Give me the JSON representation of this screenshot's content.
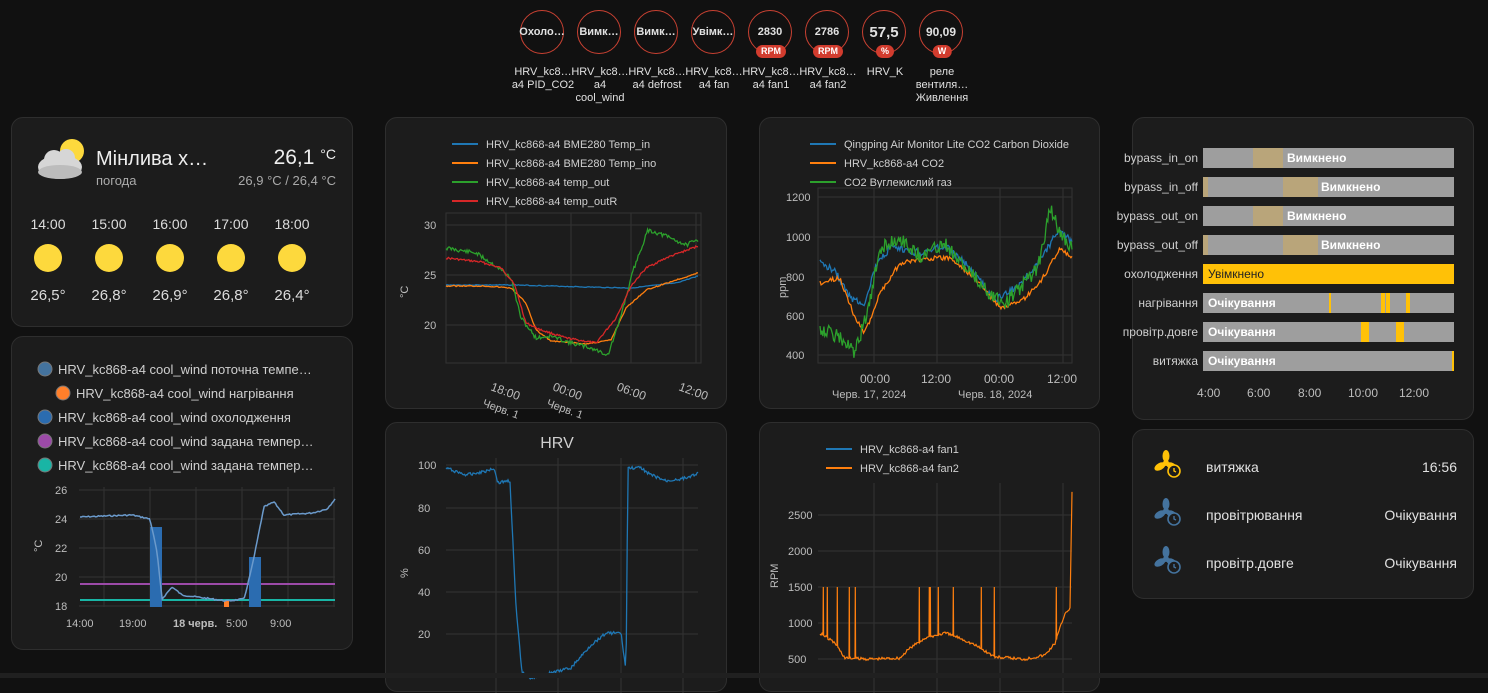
{
  "badges": [
    {
      "value": "Охоло…",
      "label": "HRV_kc8… a4 PID_CO2",
      "unit": ""
    },
    {
      "value": "Вимк…",
      "label": "HRV_kc8… a4 cool_wind",
      "unit": ""
    },
    {
      "value": "Вимк…",
      "label": "HRV_kc8… a4 defrost",
      "unit": ""
    },
    {
      "value": "Увімк…",
      "label": "HRV_kc8… a4 fan",
      "unit": ""
    },
    {
      "value": "2830",
      "label": "HRV_kc8… a4 fan1",
      "unit": "RPM"
    },
    {
      "value": "2786",
      "label": "HRV_kc8… a4 fan2",
      "unit": "RPM"
    },
    {
      "value": "57,5",
      "label": "HRV_K",
      "unit": "%"
    },
    {
      "value": "90,09",
      "label": "реле вентиля… Живлення",
      "unit": "W"
    }
  ],
  "weather": {
    "condition": "Мінлива х…",
    "subtitle": "погода",
    "temp": "26,1",
    "temp_unit": "°C",
    "range": "26,9 °C / 26,4 °C",
    "forecast": [
      {
        "time": "14:00",
        "temp": "26,5°"
      },
      {
        "time": "15:00",
        "temp": "26,8°"
      },
      {
        "time": "16:00",
        "temp": "26,9°"
      },
      {
        "time": "17:00",
        "temp": "26,8°"
      },
      {
        "time": "18:00",
        "temp": "26,4°"
      }
    ]
  },
  "thermostat": {
    "legend": [
      {
        "label": "HRV_kc868-a4 cool_wind поточна темпе…",
        "color": "#44739e"
      },
      {
        "label": "HRV_kc868-a4 cool_wind нагрівання",
        "color": "#ff7f2a"
      },
      {
        "label": "HRV_kc868-a4 cool_wind охолодження",
        "color": "#2b6cb0"
      },
      {
        "label": "HRV_kc868-a4 cool_wind задана темпер…",
        "color": "#9c4aa8"
      },
      {
        "label": "HRV_kc868-a4 cool_wind задана темпер…",
        "color": "#19b5a5"
      }
    ],
    "ylabel": "°C",
    "yticks": [
      "26",
      "24",
      "22",
      "20",
      "18"
    ],
    "xticks": [
      "14:00",
      "19:00",
      "18 черв.",
      "5:00",
      "9:00"
    ]
  },
  "chart_temp": {
    "legend": [
      {
        "label": "HRV_kc868-a4 BME280 Temp_in",
        "color": "#1f77b4"
      },
      {
        "label": "HRV_kc868-a4 BME280 Temp_ino",
        "color": "#ff7f0e"
      },
      {
        "label": "HRV_kc868-a4 temp_out",
        "color": "#2ca02c"
      },
      {
        "label": "HRV_kc868-a4 temp_outR",
        "color": "#d62728"
      }
    ],
    "ylabel": "°C",
    "yticks": [
      "30",
      "25",
      "20"
    ],
    "xticks": [
      "18:00",
      "00:00",
      "06:00",
      "12:00"
    ],
    "xticks2": [
      "Черв. 1",
      "Черв. 1"
    ]
  },
  "chart_co2": {
    "legend": [
      {
        "label": "Qingping Air Monitor Lite CO2 Carbon Dioxide",
        "color": "#1f77b4"
      },
      {
        "label": "HRV_kc868-a4 CO2",
        "color": "#ff7f0e"
      },
      {
        "label": "CO2 Вуглекислий газ",
        "color": "#2ca02c"
      }
    ],
    "ylabel": "ppm",
    "yticks": [
      "1200",
      "1000",
      "800",
      "600",
      "400"
    ],
    "xticks": [
      "00:00",
      "12:00",
      "00:00",
      "12:00"
    ],
    "xticks2": [
      "Черв. 17, 2024",
      "Черв. 18, 2024"
    ]
  },
  "chart_hrv": {
    "title": "HRV",
    "ylabel": "%",
    "yticks": [
      "100",
      "80",
      "60",
      "40",
      "20"
    ]
  },
  "chart_fan": {
    "legend": [
      {
        "label": "HRV_kc868-a4 fan1",
        "color": "#1f77b4"
      },
      {
        "label": "HRV_kc868-a4 fan2",
        "color": "#ff7f0e"
      }
    ],
    "ylabel": "RPM",
    "yticks": [
      "2500",
      "2000",
      "1500",
      "1000",
      "500"
    ]
  },
  "timeline": {
    "rows": [
      {
        "label": "bypass_in_on",
        "state": "Вимкнено"
      },
      {
        "label": "bypass_in_off",
        "state": "Вимкнено"
      },
      {
        "label": "bypass_out_on",
        "state": "Вимкнено"
      },
      {
        "label": "bypass_out_off",
        "state": "Вимкнено"
      },
      {
        "label": "охолодження",
        "state": "Увімкнено"
      },
      {
        "label": "нагрівання",
        "state": "Очікування"
      },
      {
        "label": "провітр.довге",
        "state": "Очікування"
      },
      {
        "label": "витяжка",
        "state": "Очікування"
      }
    ],
    "xticks": [
      "4:00",
      "6:00",
      "8:00",
      "10:00",
      "12:00"
    ]
  },
  "entities": [
    {
      "name": "витяжка",
      "value": "16:56",
      "color": "#ffc107"
    },
    {
      "name": "провітрювання",
      "value": "Очікування",
      "color": "#44739e"
    },
    {
      "name": "провітр.довге",
      "value": "Очікування",
      "color": "#44739e"
    }
  ]
}
